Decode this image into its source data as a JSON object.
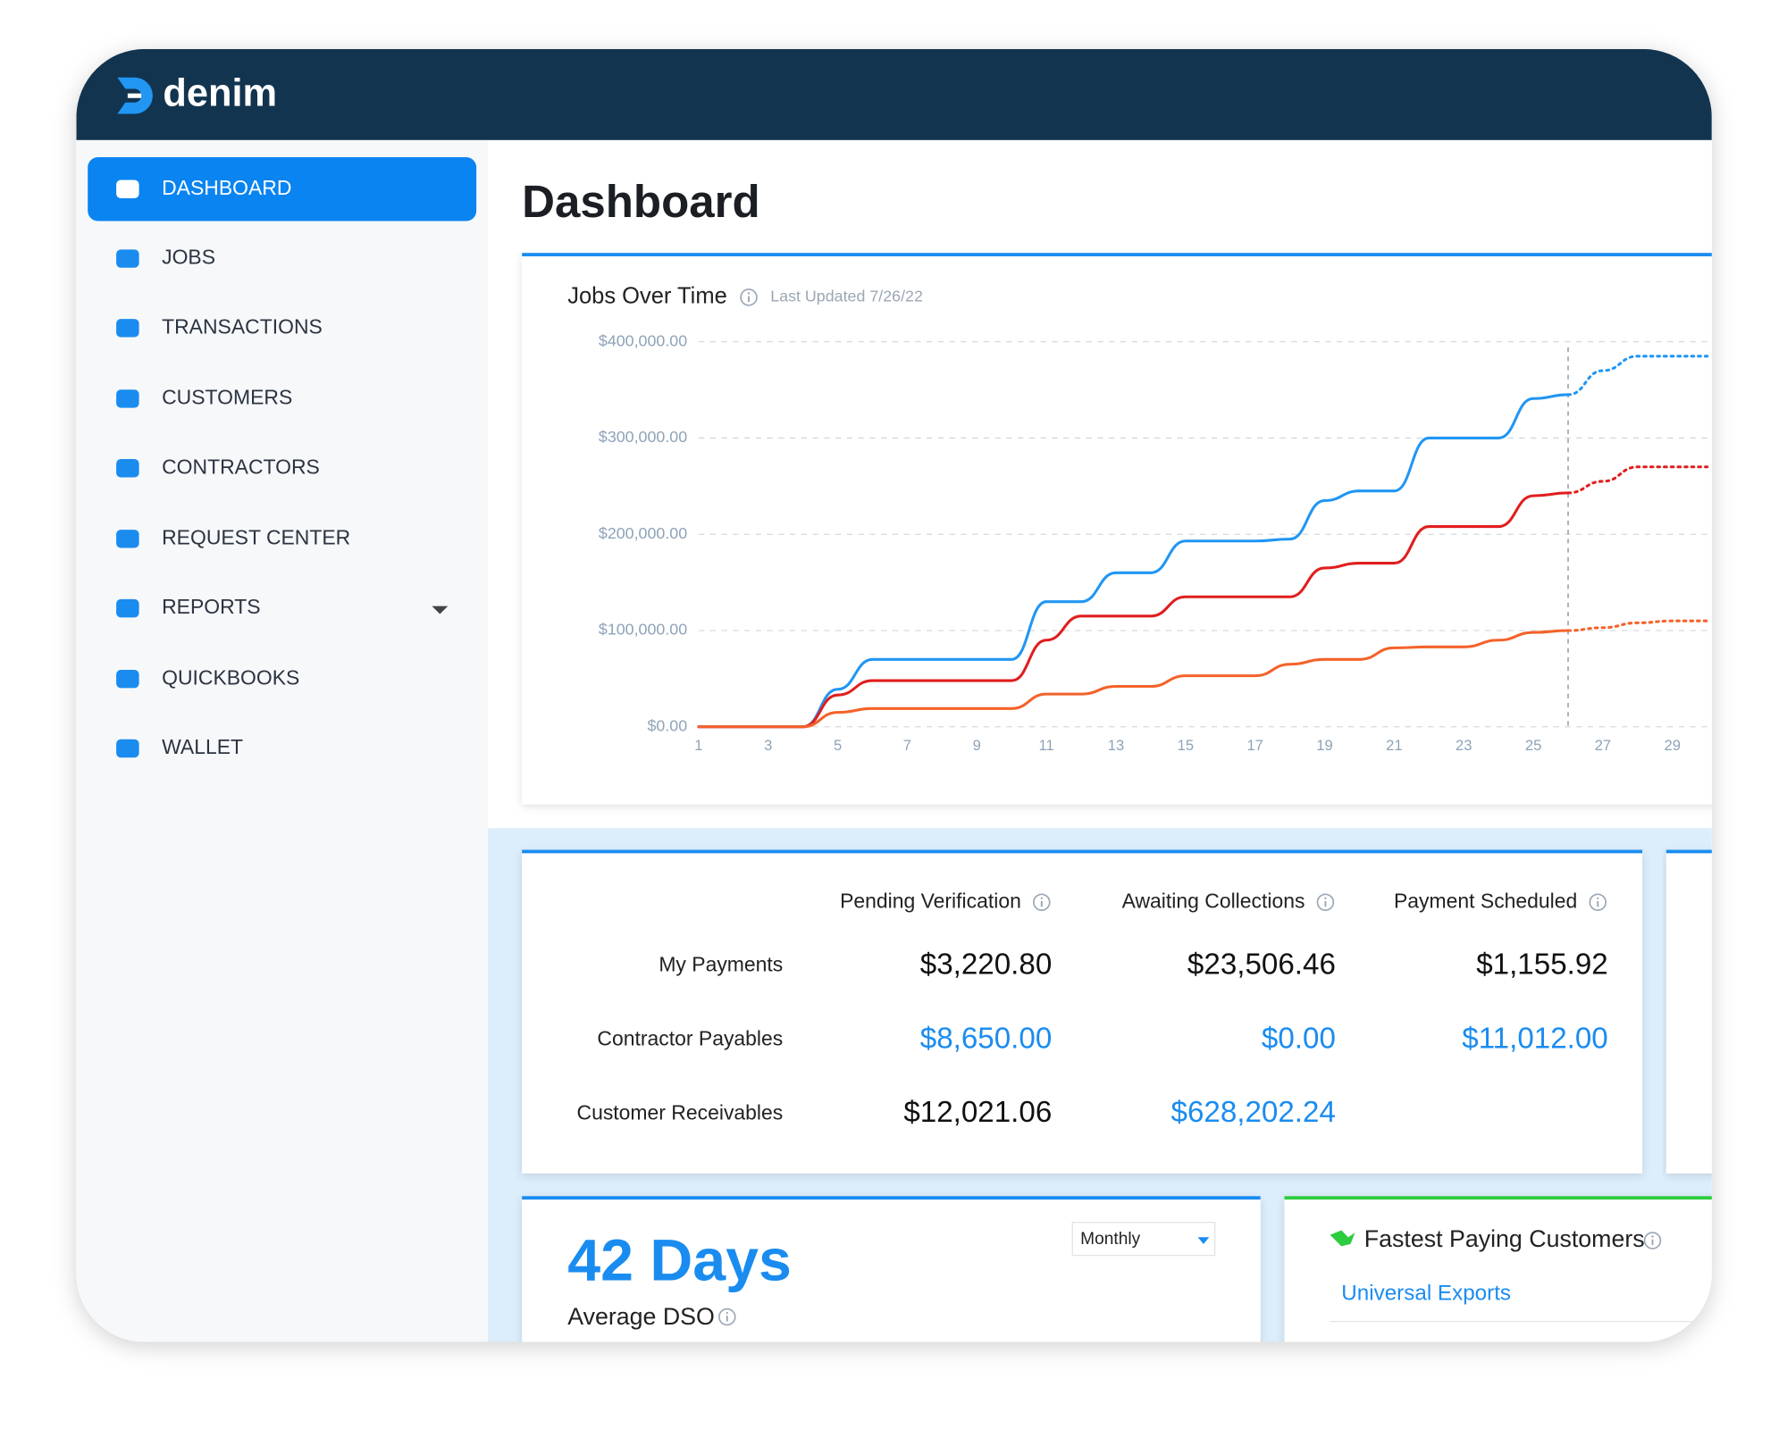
{
  "brand": "denim",
  "nav": [
    "DASHBOARD",
    "JOBS",
    "TRANSACTIONS",
    "CUSTOMERS",
    "CONTRACTORS",
    "REQUEST CENTER",
    "REPORTS",
    "QUICKBOOKS",
    "WALLET"
  ],
  "page_title": "Dashboard",
  "chart_data": {
    "type": "line",
    "title": "Jobs Over Time",
    "subtitle": "Last Updated 7/26/22",
    "x": [
      1,
      2,
      3,
      4,
      5,
      6,
      7,
      8,
      9,
      10,
      11,
      12,
      13,
      14,
      15,
      16,
      17,
      18,
      19,
      20,
      21,
      22,
      23,
      24,
      25,
      26,
      27,
      28,
      29,
      30
    ],
    "xlim": [
      1,
      30
    ],
    "xticks": [
      1,
      3,
      5,
      7,
      9,
      11,
      13,
      15,
      17,
      19,
      21,
      23,
      25,
      27,
      29
    ],
    "ylim": [
      0,
      400000
    ],
    "yticks": [
      {
        "value": 0,
        "label": "$0.00"
      },
      {
        "value": 100000,
        "label": "$100,000.00"
      },
      {
        "value": 200000,
        "label": "$200,000.00"
      },
      {
        "value": 300000,
        "label": "$300,000.00"
      },
      {
        "value": 400000,
        "label": "$400,000.00"
      }
    ],
    "grid": true,
    "marker_x": 26,
    "series": [
      {
        "color": "#2196f3",
        "values": [
          0,
          0,
          0,
          0,
          39000,
          70000,
          70000,
          70000,
          70000,
          70000,
          130000,
          130000,
          160000,
          160000,
          193000,
          193000,
          193000,
          195000,
          235000,
          245000,
          245000,
          300000,
          300000,
          300000,
          341000,
          345000,
          370000,
          385000,
          385000,
          385000
        ]
      },
      {
        "color": "#e01e1e",
        "values": [
          0,
          0,
          0,
          0,
          33000,
          48000,
          48000,
          48000,
          48000,
          48000,
          90000,
          115000,
          115000,
          115000,
          135000,
          135000,
          135000,
          135000,
          165000,
          170000,
          170000,
          208000,
          208000,
          208000,
          240000,
          243000,
          255000,
          270000,
          270000,
          270000
        ]
      },
      {
        "color": "#f4622a",
        "values": [
          0,
          0,
          0,
          0,
          15000,
          19000,
          19000,
          19000,
          19000,
          19000,
          34000,
          34000,
          42000,
          42000,
          53000,
          53000,
          53000,
          65000,
          70000,
          70000,
          82000,
          83000,
          83000,
          90000,
          98000,
          100000,
          103000,
          108000,
          110000,
          110000
        ]
      }
    ]
  },
  "payments": {
    "columns": [
      "Pending Verification",
      "Awaiting Collections",
      "Payment Scheduled"
    ],
    "rows": [
      {
        "label": "My Payments",
        "cells": [
          {
            "text": "$3,220.80",
            "color": "#111111"
          },
          {
            "text": "$23,506.46",
            "color": "#111111"
          },
          {
            "text": "$1,155.92",
            "color": "#111111"
          }
        ]
      },
      {
        "label": "Contractor Payables",
        "cells": [
          {
            "text": "$8,650.00",
            "color": "#1a8cf0"
          },
          {
            "text": "$0.00",
            "color": "#1a8cf0"
          },
          {
            "text": "$11,012.00",
            "color": "#1a8cf0"
          }
        ]
      },
      {
        "label": "Customer Receivables",
        "cells": [
          {
            "text": "$12,021.06",
            "color": "#111111"
          },
          {
            "text": "$628,202.24",
            "color": "#1a8cf0"
          }
        ]
      }
    ]
  },
  "dso": {
    "value": "42 Days",
    "label": "Average DSO",
    "period": "Monthly"
  },
  "fastest": {
    "title": "Fastest Paying Customers",
    "customers": [
      "Universal Exports"
    ]
  }
}
